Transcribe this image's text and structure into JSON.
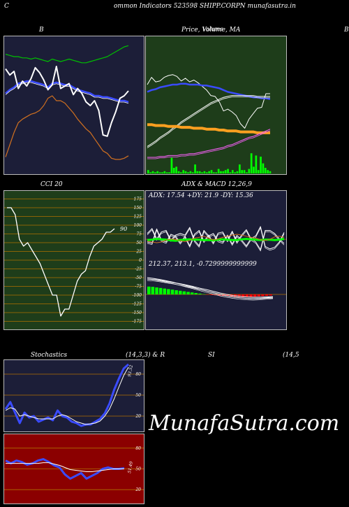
{
  "header": {
    "left": "C",
    "title": "ommon  Indicators 523598  SHIPP.CORPN  munafasutra.in"
  },
  "panels": {
    "bollinger": {
      "title": "B"
    },
    "price": {
      "title": "Price,  Volume,  MA",
      "overlap_text": "Volume"
    },
    "right_edge": {
      "title": "B"
    },
    "cci": {
      "title": "CCI 20",
      "last_label": "90"
    },
    "adx": {
      "title": "ADX  & MACD 12,26,9",
      "adx_text": "ADX: 17.54   +DY: 21.9 -DY: 15.36",
      "macd_text": "212.37,  213.1,  -0.7299999999999"
    },
    "stoch": {
      "title_left": "Stochastics",
      "title_mid": "(14,3,3) & R",
      "title_si": "SI",
      "title_right": "(14,5",
      "last_label": "93.52"
    },
    "rsi": {
      "last_label": "51.49"
    }
  },
  "watermark": "MunafaSutra.com",
  "colors": {
    "bollinger_bg": "#1c1e38",
    "price_bg": "#1e3d1a",
    "cci_bg": "#1e3d1a",
    "adx_bg": "#1c1e38",
    "stoch_bg": "#1c1e38",
    "rsi_bg": "#8b0000"
  },
  "chart_data": [
    {
      "type": "line",
      "name": "bollinger",
      "series": [
        {
          "name": "upper",
          "color": "#00c000",
          "values": [
            94,
            93,
            92,
            92,
            91,
            91,
            90,
            91,
            90,
            89,
            88,
            90,
            89,
            88,
            89,
            90,
            89,
            88,
            87,
            87,
            88,
            89,
            90,
            91,
            92,
            94,
            96,
            98,
            100,
            101
          ]
        },
        {
          "name": "middle",
          "color": "#3a4bff",
          "values": [
            62,
            65,
            67,
            70,
            71,
            72,
            72,
            71,
            70,
            69,
            67,
            70,
            71,
            70,
            69,
            69,
            67,
            65,
            64,
            63,
            62,
            60,
            60,
            59,
            59,
            58,
            57,
            56,
            56,
            55
          ]
        },
        {
          "name": "lower",
          "color": "#d07020",
          "values": [
            10,
            20,
            30,
            38,
            41,
            43,
            45,
            46,
            48,
            52,
            58,
            60,
            56,
            56,
            54,
            50,
            46,
            41,
            37,
            33,
            30,
            25,
            20,
            15,
            13,
            9,
            8,
            8,
            9,
            11
          ]
        },
        {
          "name": "close",
          "color": "#ffffff",
          "values": [
            82,
            77,
            80,
            66,
            72,
            68,
            74,
            83,
            79,
            73,
            65,
            69,
            84,
            66,
            68,
            70,
            61,
            66,
            62,
            55,
            52,
            56,
            48,
            28,
            27,
            38,
            47,
            58,
            60,
            64
          ]
        }
      ]
    },
    {
      "type": "line",
      "name": "price_volume_ma",
      "series": [
        {
          "name": "price",
          "color": "#ffffff",
          "values": [
            70,
            78,
            73,
            74,
            78,
            80,
            81,
            79,
            74,
            77,
            73,
            75,
            72,
            68,
            64,
            58,
            57,
            51,
            41,
            43,
            40,
            36,
            27,
            22,
            32,
            38,
            44,
            45,
            60,
            60
          ]
        },
        {
          "name": "ma_short",
          "color": "#3a4bff",
          "values": [
            62,
            64,
            65,
            67,
            68,
            69,
            70,
            70,
            71,
            71,
            70,
            70,
            70,
            69,
            69,
            68,
            67,
            66,
            64,
            62,
            61,
            60,
            59,
            58,
            57,
            56,
            56,
            55,
            55,
            54
          ]
        },
        {
          "name": "ma_mid",
          "color": "#ffffff",
          "values": [
            2,
            5,
            8,
            12,
            15,
            18,
            22,
            25,
            29,
            32,
            35,
            38,
            41,
            44,
            47,
            50,
            52,
            54,
            56,
            57,
            58,
            58,
            58,
            58,
            58,
            58,
            57,
            57,
            57,
            57
          ]
        },
        {
          "name": "ma_long",
          "color": "#ffa020",
          "values": [
            26,
            26,
            25,
            25,
            25,
            24,
            24,
            24,
            23,
            23,
            23,
            22,
            22,
            22,
            21,
            21,
            21,
            20,
            20,
            19,
            19,
            19,
            18,
            18,
            18,
            18,
            17,
            17,
            17,
            17
          ]
        },
        {
          "name": "ma_long2",
          "color": "#ff60ff",
          "values": [
            -10,
            -10,
            -10,
            -9,
            -9,
            -8,
            -8,
            -8,
            -7,
            -7,
            -6,
            -6,
            -5,
            -4,
            -3,
            -2,
            -1,
            0,
            1,
            3,
            4,
            6,
            8,
            10,
            12,
            13,
            15,
            17,
            19,
            21
          ]
        }
      ],
      "volume": [
        3,
        1,
        2,
        1,
        2,
        1,
        1,
        2,
        1,
        1,
        14,
        5,
        6,
        2,
        1,
        3,
        2,
        1,
        2,
        1,
        8,
        2,
        2,
        1,
        2,
        1,
        2,
        3,
        1,
        1,
        4,
        2,
        2,
        3,
        4,
        1,
        3,
        1,
        2,
        8,
        3,
        3,
        1,
        4,
        18,
        6,
        16,
        3,
        15,
        9,
        5,
        3,
        2
      ]
    },
    {
      "type": "line",
      "name": "cci",
      "ylim": [
        -190,
        190
      ],
      "ticks": [
        "175",
        "150",
        "125",
        "100",
        "75",
        "50",
        "25",
        "0",
        "-25",
        "-50",
        "-75",
        "-100",
        "-125",
        "-150",
        "-175"
      ],
      "values": [
        150,
        150,
        130,
        60,
        40,
        50,
        30,
        10,
        -10,
        -40,
        -70,
        -100,
        -100,
        -160,
        -140,
        -140,
        -100,
        -60,
        -40,
        -30,
        10,
        40,
        50,
        60,
        80,
        80,
        90
      ]
    },
    {
      "type": "line",
      "name": "adx",
      "series": [
        {
          "name": "plus_di",
          "color": "#ffffff",
          "values": [
            62,
            75,
            48,
            66,
            70,
            45,
            58,
            62,
            58,
            78,
            44,
            30,
            70,
            56,
            62,
            44,
            40,
            58,
            35,
            57,
            45,
            30,
            49,
            56,
            80,
            28,
            22,
            26,
            40,
            65
          ]
        },
        {
          "name": "minus_di",
          "color": "#ffffff",
          "values": [
            40,
            37,
            74,
            45,
            40,
            60,
            55,
            38,
            55,
            30,
            60,
            70,
            42,
            58,
            38,
            63,
            66,
            44,
            68,
            40,
            58,
            72,
            48,
            40,
            20,
            70,
            70,
            62,
            48,
            36
          ]
        },
        {
          "name": "adx",
          "color": "#00ff00",
          "values": [
            45,
            46,
            48,
            47,
            46,
            44,
            43,
            45,
            46,
            47,
            46,
            46,
            45,
            45,
            44,
            46,
            47,
            46,
            45,
            45,
            47,
            48,
            47,
            46,
            45,
            46,
            46,
            45,
            46,
            48
          ]
        },
        {
          "name": "orange",
          "color": "#d07020",
          "values": [
            42,
            40,
            38,
            40,
            45,
            48,
            46,
            43,
            41,
            44,
            50,
            52,
            55,
            50,
            45,
            48,
            52,
            55,
            58,
            60,
            58,
            55,
            52,
            50,
            46,
            44,
            47,
            53,
            55,
            52
          ]
        }
      ]
    },
    {
      "type": "bar",
      "name": "macd",
      "series": [
        {
          "name": "macd",
          "values": [
            60,
            57,
            53,
            48,
            43,
            37,
            31,
            25,
            18,
            12,
            6,
            0,
            -5,
            -9,
            -12,
            -14,
            -15,
            -14,
            -12,
            -10
          ]
        },
        {
          "name": "signal",
          "values": [
            55,
            53,
            50,
            46,
            42,
            38,
            33,
            28,
            22,
            17,
            11,
            5,
            0,
            -4,
            -7,
            -9,
            -10,
            -10,
            -9,
            -8
          ]
        }
      ],
      "histogram": [
        28,
        27,
        25,
        23,
        21,
        19,
        17,
        15,
        13,
        11,
        9,
        7,
        5,
        3,
        1,
        -1,
        -2,
        -3,
        -4,
        -5,
        -6,
        -7,
        -8,
        -9,
        -10,
        -10,
        -9,
        -8,
        -7,
        -6,
        -5,
        -4
      ]
    },
    {
      "type": "line",
      "name": "stochastics",
      "ylim": [
        0,
        100
      ],
      "ticks": [
        "80",
        "50",
        "20"
      ],
      "series": [
        {
          "name": "k",
          "color": "#3a4bff",
          "values": [
            30,
            40,
            25,
            10,
            25,
            18,
            20,
            12,
            15,
            18,
            14,
            28,
            20,
            18,
            12,
            10,
            6,
            8,
            8,
            12,
            16,
            24,
            38,
            58,
            74,
            88,
            94
          ]
        },
        {
          "name": "d",
          "color": "#ffffff",
          "values": [
            28,
            32,
            30,
            20,
            22,
            20,
            18,
            16,
            16,
            16,
            16,
            20,
            22,
            20,
            16,
            12,
            10,
            8,
            9,
            10,
            13,
            20,
            30,
            45,
            62,
            78,
            90
          ]
        }
      ]
    },
    {
      "type": "line",
      "name": "rsi",
      "ylim": [
        0,
        100
      ],
      "ticks": [
        "80",
        "50",
        "20"
      ],
      "series": [
        {
          "name": "rsi",
          "color": "#3a4bff",
          "values": [
            62,
            58,
            62,
            60,
            56,
            58,
            62,
            64,
            60,
            55,
            52,
            42,
            36,
            40,
            44,
            36,
            40,
            44,
            50,
            52,
            50,
            50,
            51
          ]
        },
        {
          "name": "rsi_ma",
          "color": "#ffffff",
          "values": [
            58,
            58,
            58,
            58,
            58,
            58,
            58,
            59,
            59,
            57,
            55,
            52,
            49,
            48,
            47,
            46,
            46,
            47,
            48,
            49,
            50,
            50,
            50
          ]
        }
      ]
    }
  ]
}
